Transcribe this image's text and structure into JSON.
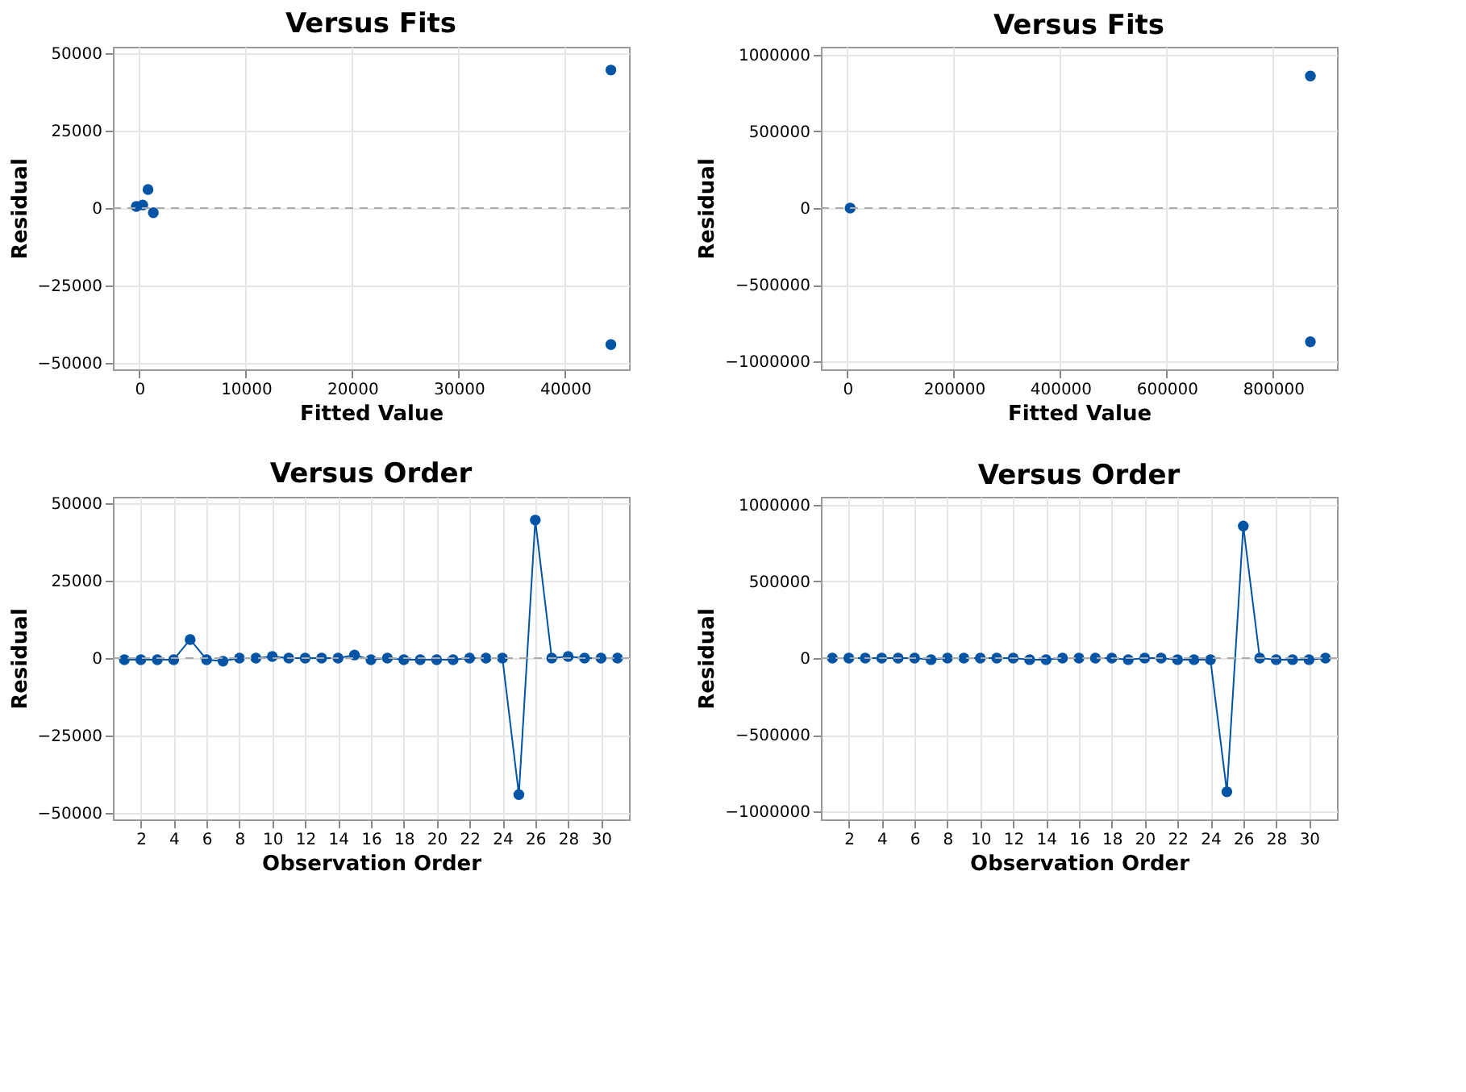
{
  "chart_data": [
    {
      "type": "scatter",
      "title": "Versus Fits",
      "xlabel": "Fitted Value",
      "ylabel": "Residual",
      "xlim": [
        -2500,
        46000
      ],
      "xticks": [
        0,
        10000,
        20000,
        30000,
        40000
      ],
      "ylim": [
        -52000,
        52000
      ],
      "yticks": [
        -50000,
        -25000,
        0,
        25000,
        50000
      ],
      "grid": true,
      "marker": "circle",
      "series": [
        {
          "color": "#0054a6",
          "x": [
            -300,
            300,
            800,
            1300,
            44300,
            44300
          ],
          "values": [
            500,
            1000,
            6000,
            -1500,
            -44000,
            44500
          ]
        }
      ],
      "ref_lines": [
        {
          "axis": "y",
          "value": 0,
          "color": "#aaaaaa",
          "line_style": "dashed"
        }
      ]
    },
    {
      "type": "scatter",
      "title": "Versus Fits",
      "xlabel": "Fitted Value",
      "ylabel": "Residual",
      "xlim": [
        -50000,
        920000
      ],
      "xticks": [
        0,
        200000,
        400000,
        600000,
        800000
      ],
      "ylim": [
        -1050000,
        1050000
      ],
      "yticks": [
        -1000000,
        -500000,
        0,
        500000,
        1000000
      ],
      "grid": true,
      "marker": "circle",
      "series": [
        {
          "color": "#0054a6",
          "x": [
            5000,
            870000,
            870000
          ],
          "values": [
            0,
            -870000,
            860000
          ]
        }
      ],
      "ref_lines": [
        {
          "axis": "y",
          "value": 0,
          "color": "#aaaaaa",
          "line_style": "dashed"
        }
      ]
    },
    {
      "type": "line",
      "title": "Versus Order",
      "xlabel": "Observation Order",
      "ylabel": "Residual",
      "xlim": [
        0.3,
        31.7
      ],
      "xticks": [
        2,
        4,
        6,
        8,
        10,
        12,
        14,
        16,
        18,
        20,
        22,
        24,
        26,
        28,
        30
      ],
      "ylim": [
        -52000,
        52000
      ],
      "yticks": [
        -50000,
        -25000,
        0,
        25000,
        50000
      ],
      "grid": true,
      "marker": "circle",
      "line_style": "solid",
      "series": [
        {
          "color": "#0054a6",
          "x": [
            1,
            2,
            3,
            4,
            5,
            6,
            7,
            8,
            9,
            10,
            11,
            12,
            13,
            14,
            15,
            16,
            17,
            18,
            19,
            20,
            21,
            22,
            23,
            24,
            25,
            26,
            27,
            28,
            29,
            30,
            31
          ],
          "values": [
            -500,
            -500,
            -500,
            -500,
            6000,
            -500,
            -1000,
            0,
            0,
            500,
            0,
            0,
            0,
            0,
            1000,
            -500,
            0,
            -500,
            -500,
            -500,
            -500,
            0,
            0,
            0,
            -44000,
            44500,
            0,
            500,
            0,
            0,
            0
          ]
        }
      ],
      "ref_lines": [
        {
          "axis": "y",
          "value": 0,
          "color": "#aaaaaa",
          "line_style": "dashed"
        }
      ]
    },
    {
      "type": "line",
      "title": "Versus Order",
      "xlabel": "Observation Order",
      "ylabel": "Residual",
      "xlim": [
        0.3,
        31.7
      ],
      "xticks": [
        2,
        4,
        6,
        8,
        10,
        12,
        14,
        16,
        18,
        20,
        22,
        24,
        26,
        28,
        30
      ],
      "ylim": [
        -1050000,
        1050000
      ],
      "yticks": [
        -1000000,
        -500000,
        0,
        500000,
        1000000
      ],
      "grid": true,
      "marker": "circle",
      "line_style": "solid",
      "series": [
        {
          "color": "#0054a6",
          "x": [
            1,
            2,
            3,
            4,
            5,
            6,
            7,
            8,
            9,
            10,
            11,
            12,
            13,
            14,
            15,
            16,
            17,
            18,
            19,
            20,
            21,
            22,
            23,
            24,
            25,
            26,
            27,
            28,
            29,
            30,
            31
          ],
          "values": [
            0,
            0,
            0,
            0,
            0,
            0,
            -10000,
            0,
            0,
            0,
            0,
            0,
            -10000,
            -10000,
            0,
            0,
            0,
            0,
            -10000,
            0,
            0,
            -10000,
            -10000,
            -10000,
            -870000,
            860000,
            0,
            -10000,
            -10000,
            -10000,
            0
          ]
        }
      ],
      "ref_lines": [
        {
          "axis": "y",
          "value": 0,
          "color": "#aaaaaa",
          "line_style": "dashed"
        }
      ]
    }
  ]
}
